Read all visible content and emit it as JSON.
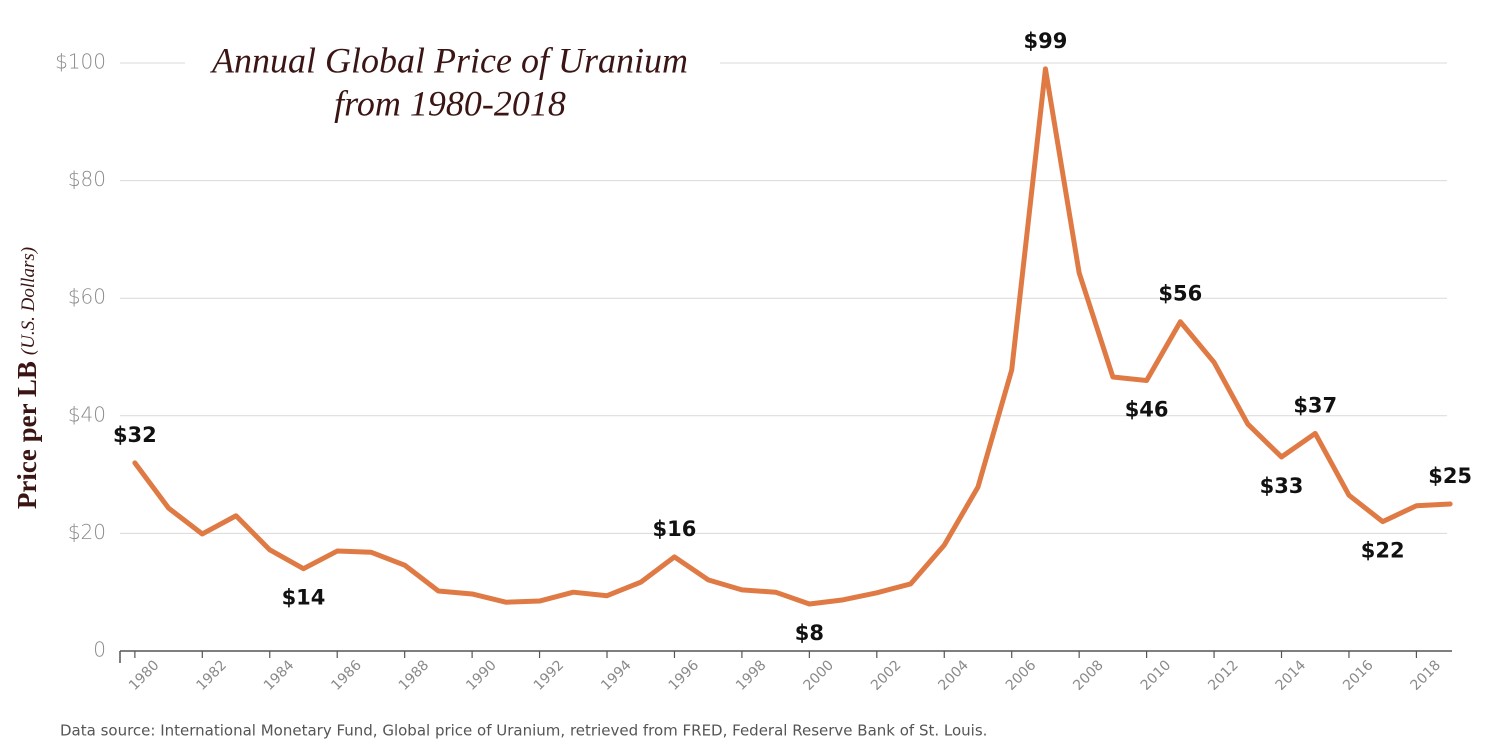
{
  "chart_data": {
    "type": "line",
    "title": [
      "Annual Global Price of Uranium",
      "from 1980-2018"
    ],
    "y_label": "Price per LB",
    "y_label_note": "(U.S. Dollars)",
    "source": "Data source: International Monetary Fund, Global price of Uranium, retrieved from FRED, Federal Reserve Bank of St. Louis.",
    "x": [
      1980,
      1981,
      1982,
      1983,
      1984,
      1985,
      1986,
      1987,
      1988,
      1989,
      1990,
      1991,
      1992,
      1993,
      1994,
      1995,
      1996,
      1997,
      1998,
      1999,
      2000,
      2001,
      2002,
      2003,
      2004,
      2005,
      2006,
      2007,
      2008,
      2009,
      2010,
      2011,
      2012,
      2013,
      2014,
      2015,
      2016,
      2017,
      2018,
      2019
    ],
    "series": [
      {
        "name": "Price",
        "color": "#e07a45",
        "values": [
          32,
          24.3,
          19.9,
          23,
          17.2,
          14,
          17,
          16.8,
          14.6,
          10.2,
          9.7,
          8.3,
          8.5,
          10,
          9.4,
          11.7,
          16,
          12.1,
          10.4,
          10,
          8,
          8.7,
          9.9,
          11.4,
          18,
          27.9,
          47.8,
          99,
          64.3,
          46.6,
          46,
          56,
          49.1,
          38.6,
          33,
          37,
          26.5,
          22,
          24.7,
          25
        ],
        "value_labels": [
          "$32",
          null,
          null,
          null,
          null,
          "$14",
          null,
          null,
          null,
          null,
          null,
          null,
          null,
          null,
          null,
          null,
          "$16",
          null,
          null,
          null,
          "$8",
          null,
          null,
          null,
          null,
          null,
          null,
          "$99",
          null,
          null,
          "$46",
          "$56",
          null,
          null,
          "$33",
          "$37",
          null,
          "$22",
          null,
          "$25"
        ]
      }
    ],
    "xlim": [
      1979.5,
      2019.5
    ],
    "xticks": [
      1980,
      1982,
      1984,
      1986,
      1988,
      1990,
      1992,
      1994,
      1996,
      1998,
      2000,
      2002,
      2004,
      2006,
      2008,
      2010,
      2012,
      2014,
      2016,
      2018
    ],
    "ylim": [
      0,
      100
    ],
    "yticks": [
      0,
      {
        "value": 20,
        "label": "$20"
      },
      {
        "value": 40,
        "label": "$40"
      },
      {
        "value": 60,
        "label": "$60"
      },
      {
        "value": 80,
        "label": "$80"
      },
      {
        "value": 100,
        "label": "$100"
      }
    ],
    "grid": true
  }
}
